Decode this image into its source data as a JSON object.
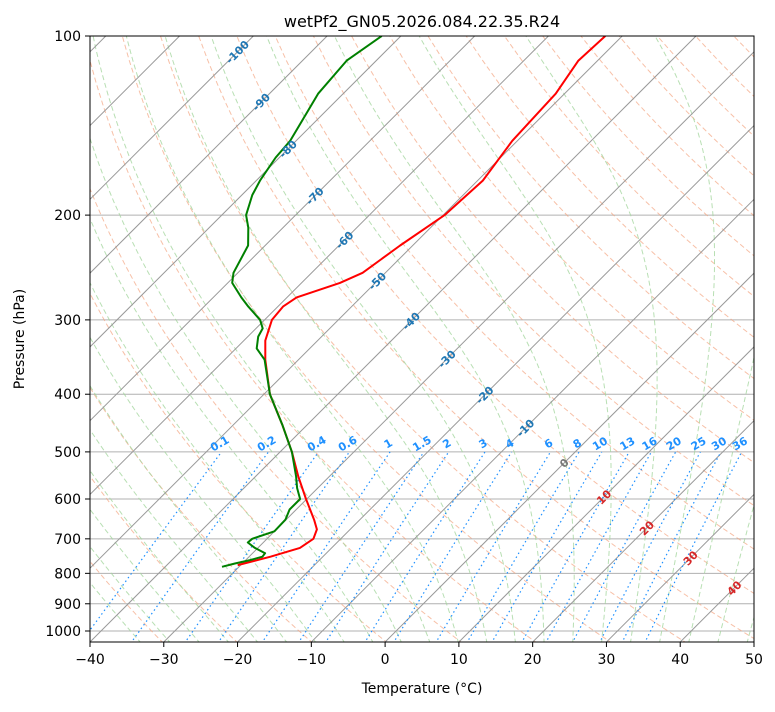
{
  "chart_data": {
    "type": "line",
    "subtype": "skew-t log-p",
    "title": "wetPf2_GN05.2026.084.22.35.R24",
    "xlabel": "Temperature (°C)",
    "ylabel": "Pressure (hPa)",
    "xlim": [
      -40,
      50
    ],
    "ylim": [
      1050,
      100
    ],
    "xticks": [
      "-40",
      "-30",
      "-20",
      "-10",
      "0",
      "10",
      "20",
      "30",
      "40",
      "50"
    ],
    "yticks": [
      "100",
      "200",
      "300",
      "400",
      "500",
      "600",
      "700",
      "800",
      "900",
      "1000"
    ],
    "grid": true,
    "colors": {
      "temperature": "#ff0000",
      "dewpoint": "#008000",
      "isotherm": "#999999",
      "dry_adiabat": "#f4a582",
      "moist_adiabat": "#a6d7a0",
      "mixing_ratio": "#1e90ff"
    },
    "isotherm_labels": [
      "-100",
      "-90",
      "-80",
      "-70",
      "-60",
      "-50",
      "-40",
      "-30",
      "-20",
      "-10",
      "0",
      "10",
      "20",
      "30",
      "40"
    ],
    "mixing_ratio_labels": [
      "0.1",
      "0.2",
      "0.4",
      "0.6",
      "1",
      "1.5",
      "2",
      "3",
      "4",
      "6",
      "8",
      "10",
      "13",
      "16",
      "20",
      "25",
      "30",
      "36"
    ],
    "series": [
      {
        "name": "Temperature",
        "color": "#ff0000",
        "p": [
          775,
          750,
          725,
          700,
          675,
          650,
          600,
          550,
          500,
          450,
          400,
          350,
          325,
          300,
          285,
          275,
          260,
          250,
          225,
          200,
          175,
          150,
          125,
          110,
          100
        ],
        "t": [
          -30.4,
          -27.1,
          -24.3,
          -23.7,
          -24.5,
          -26.2,
          -30.1,
          -34.2,
          -38.4,
          -43.4,
          -49.2,
          -54.5,
          -57.1,
          -59.0,
          -59.3,
          -58.7,
          -54.8,
          -53.1,
          -51.7,
          -49.8,
          -49.3,
          -50.7,
          -51.2,
          -52.6,
          -52.3
        ]
      },
      {
        "name": "Dewpoint",
        "color": "#008000",
        "p": [
          780,
          770,
          760,
          750,
          740,
          725,
          710,
          700,
          680,
          650,
          625,
          600,
          575,
          550,
          500,
          450,
          400,
          350,
          335,
          320,
          310,
          300,
          285,
          275,
          260,
          250,
          225,
          210,
          200,
          185,
          175,
          160,
          150,
          125,
          110,
          100
        ],
        "t": [
          -32.3,
          -31.0,
          -29.4,
          -28.2,
          -28.3,
          -30.4,
          -32.1,
          -32.0,
          -30.0,
          -30.1,
          -30.9,
          -30.9,
          -32.8,
          -34.5,
          -38.4,
          -43.4,
          -49.2,
          -54.6,
          -57.2,
          -58.6,
          -59.1,
          -60.6,
          -64.0,
          -66.2,
          -69.4,
          -70.6,
          -72.3,
          -74.7,
          -76.7,
          -78.6,
          -79.5,
          -80.5,
          -80.8,
          -83.4,
          -84.0,
          -82.6
        ]
      }
    ]
  }
}
